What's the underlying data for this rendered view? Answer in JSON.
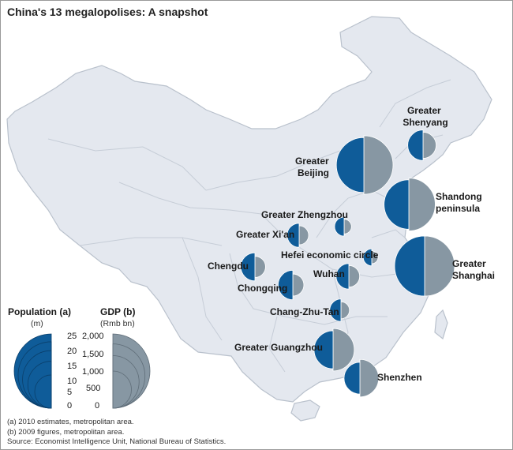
{
  "title": "China's 13 megalopolises: A snapshot",
  "colors": {
    "population": "#0f5c99",
    "gdp": "#8797a3",
    "land": "#e4e8ef",
    "border": "#b9c1cc",
    "coast": "#ffffff"
  },
  "legend": {
    "population": {
      "title": "Population (a)",
      "unit": "(m)",
      "ticks": [
        "25",
        "20",
        "15",
        "10",
        "5",
        "0"
      ]
    },
    "gdp": {
      "title": "GDP (b)",
      "unit": "(Rmb bn)",
      "ticks": [
        "2,000",
        "1,500",
        "1,000",
        "500",
        "0"
      ]
    }
  },
  "megalopolises": [
    {
      "name_lines": [
        "Greater",
        "Shenyang"
      ],
      "population_m": 6.5,
      "gdp_rmb_bn": 380
    },
    {
      "name_lines": [
        "Greater",
        "Beijing"
      ],
      "population_m": 21,
      "gdp_rmb_bn": 1900
    },
    {
      "name_lines": [
        "Shandong",
        "peninsula"
      ],
      "population_m": 17,
      "gdp_rmb_bn": 1550
    },
    {
      "name_lines": [
        "Greater Zhengzhou"
      ],
      "population_m": 2.5,
      "gdp_rmb_bn": 120
    },
    {
      "name_lines": [
        "Greater Xi'an"
      ],
      "population_m": 4,
      "gdp_rmb_bn": 200
    },
    {
      "name_lines": [
        "Hefei economic circle"
      ],
      "population_m": 2,
      "gdp_rmb_bn": 90
    },
    {
      "name_lines": [
        "Greater",
        "Shanghai"
      ],
      "population_m": 25,
      "gdp_rmb_bn": 2000
    },
    {
      "name_lines": [
        "Chengdu"
      ],
      "population_m": 5.5,
      "gdp_rmb_bn": 250
    },
    {
      "name_lines": [
        "Wuhan"
      ],
      "population_m": 4.5,
      "gdp_rmb_bn": 260
    },
    {
      "name_lines": [
        "Chongqing"
      ],
      "population_m": 6,
      "gdp_rmb_bn": 270
    },
    {
      "name_lines": [
        "Chang-Zhu-Tan"
      ],
      "population_m": 3.5,
      "gdp_rmb_bn": 160
    },
    {
      "name_lines": [
        "Greater Guangzhou"
      ],
      "population_m": 10,
      "gdp_rmb_bn": 1000
    },
    {
      "name_lines": [
        "Shenzhen"
      ],
      "population_m": 7,
      "gdp_rmb_bn": 780
    }
  ],
  "notes": [
    "(a) 2010 estimates, metropolitan area.",
    "(b) 2009 figures, metropolitan area.",
    "Source: Economist Intelligence Unit, National Bureau of Statistics."
  ]
}
